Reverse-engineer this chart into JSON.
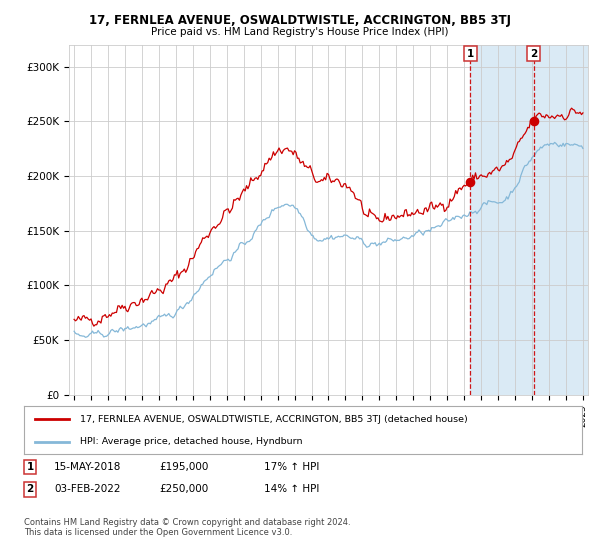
{
  "title": "17, FERNLEA AVENUE, OSWALDTWISTLE, ACCRINGTON, BB5 3TJ",
  "subtitle": "Price paid vs. HM Land Registry's House Price Index (HPI)",
  "legend_line1": "17, FERNLEA AVENUE, OSWALDTWISTLE, ACCRINGTON, BB5 3TJ (detached house)",
  "legend_line2": "HPI: Average price, detached house, Hyndburn",
  "annotation1_date": "15-MAY-2018",
  "annotation1_price": "£195,000",
  "annotation1_hpi": "17% ↑ HPI",
  "annotation2_date": "03-FEB-2022",
  "annotation2_price": "£250,000",
  "annotation2_hpi": "14% ↑ HPI",
  "footer": "Contains HM Land Registry data © Crown copyright and database right 2024.\nThis data is licensed under the Open Government Licence v3.0.",
  "red_color": "#cc0000",
  "blue_color": "#85b8d8",
  "highlight_bg": "#daeaf5",
  "grid_color": "#cccccc",
  "background_color": "#ffffff",
  "ylim": [
    0,
    320000
  ],
  "yticks": [
    0,
    50000,
    100000,
    150000,
    200000,
    250000,
    300000
  ],
  "ytick_labels": [
    "£0",
    "£50K",
    "£100K",
    "£150K",
    "£200K",
    "£250K",
    "£300K"
  ],
  "sale1_year": 2018.37,
  "sale1_value": 195000,
  "sale2_year": 2022.09,
  "sale2_value": 250000,
  "xstart": 1995,
  "xend": 2025
}
